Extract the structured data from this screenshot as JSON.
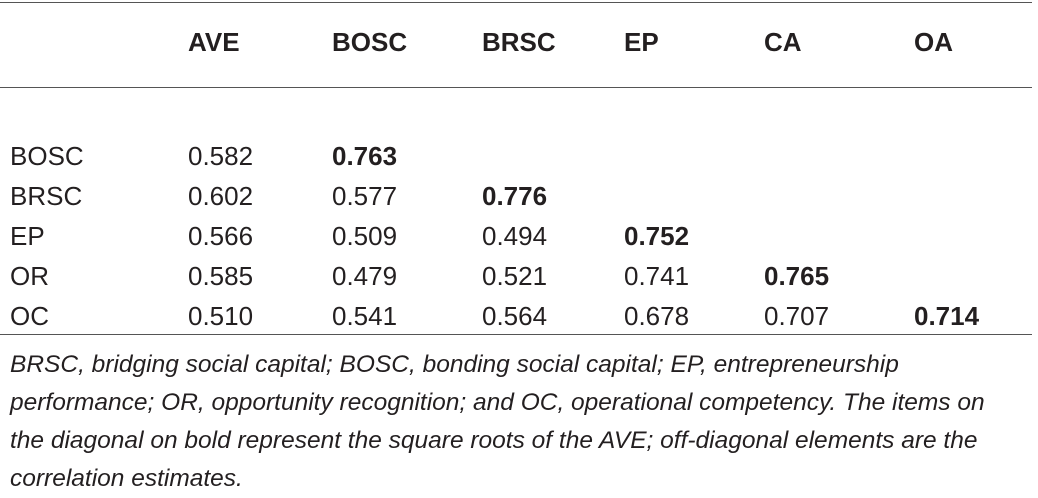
{
  "table": {
    "headers": [
      "",
      "AVE",
      "BOSC",
      "BRSC",
      "EP",
      "CA",
      "OA"
    ],
    "rows": [
      {
        "label": "BOSC",
        "cells": [
          "0.582",
          "0.763",
          "",
          "",
          "",
          ""
        ],
        "bold_index": 1
      },
      {
        "label": "BRSC",
        "cells": [
          "0.602",
          "0.577",
          "0.776",
          "",
          "",
          ""
        ],
        "bold_index": 2
      },
      {
        "label": "EP",
        "cells": [
          "0.566",
          "0.509",
          "0.494",
          "0.752",
          "",
          ""
        ],
        "bold_index": 3
      },
      {
        "label": "OR",
        "cells": [
          "0.585",
          "0.479",
          "0.521",
          "0.741",
          "0.765",
          ""
        ],
        "bold_index": 4
      },
      {
        "label": "OC",
        "cells": [
          "0.510",
          "0.541",
          "0.564",
          "0.678",
          "0.707",
          "0.714"
        ],
        "bold_index": 5
      }
    ]
  },
  "footnote": "BRSC, bridging social capital; BOSC, bonding social capital; EP, entrepreneurship performance; OR, opportunity recognition; and OC, operational competency. The items on the diagonal on bold represent the square roots of the AVE; off-diagonal elements are the correlation estimates."
}
